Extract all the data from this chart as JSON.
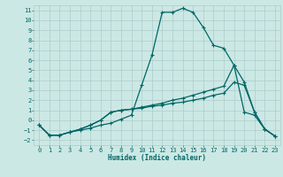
{
  "xlabel": "Humidex (Indice chaleur)",
  "bg_color": "#cce8e4",
  "grid_color": "#aacccc",
  "line_color": "#006666",
  "xlim": [
    -0.5,
    23.5
  ],
  "ylim": [
    -2.5,
    11.5
  ],
  "xticks": [
    0,
    1,
    2,
    3,
    4,
    5,
    6,
    7,
    8,
    9,
    10,
    11,
    12,
    13,
    14,
    15,
    16,
    17,
    18,
    19,
    20,
    21,
    22,
    23
  ],
  "yticks": [
    -2,
    -1,
    0,
    1,
    2,
    3,
    4,
    5,
    6,
    7,
    8,
    9,
    10,
    11
  ],
  "s1_x": [
    0,
    1,
    2,
    3,
    4,
    5,
    6,
    7,
    8,
    9,
    10,
    11,
    12,
    13,
    14,
    15,
    16,
    17,
    18,
    19,
    20,
    21,
    22,
    23
  ],
  "s1_y": [
    -0.5,
    -1.5,
    -1.5,
    -1.2,
    -1.0,
    -0.8,
    -0.5,
    -0.3,
    0.1,
    0.5,
    3.5,
    6.5,
    10.8,
    10.8,
    11.2,
    10.8,
    9.3,
    7.5,
    7.2,
    5.5,
    0.8,
    0.5,
    -0.9,
    -1.6
  ],
  "s2_x": [
    0,
    1,
    2,
    3,
    4,
    5,
    6,
    7,
    8,
    9,
    10,
    11,
    12,
    13,
    14,
    15,
    16,
    17,
    18,
    19,
    20,
    21,
    22,
    23
  ],
  "s2_y": [
    -0.5,
    -1.5,
    -1.5,
    -1.2,
    -0.9,
    -0.5,
    0.0,
    0.8,
    1.0,
    1.1,
    1.3,
    1.5,
    1.7,
    2.0,
    2.2,
    2.5,
    2.8,
    3.1,
    3.4,
    5.5,
    3.8,
    0.8,
    -0.9,
    -1.6
  ],
  "s3_x": [
    0,
    1,
    2,
    3,
    4,
    5,
    6,
    7,
    8,
    9,
    10,
    11,
    12,
    13,
    14,
    15,
    16,
    17,
    18,
    19,
    20,
    21,
    22,
    23
  ],
  "s3_y": [
    -0.5,
    -1.5,
    -1.5,
    -1.2,
    -0.9,
    -0.5,
    0.0,
    0.8,
    1.0,
    1.1,
    1.2,
    1.4,
    1.5,
    1.7,
    1.8,
    2.0,
    2.2,
    2.5,
    2.7,
    3.8,
    3.5,
    0.8,
    -0.9,
    -1.6
  ]
}
